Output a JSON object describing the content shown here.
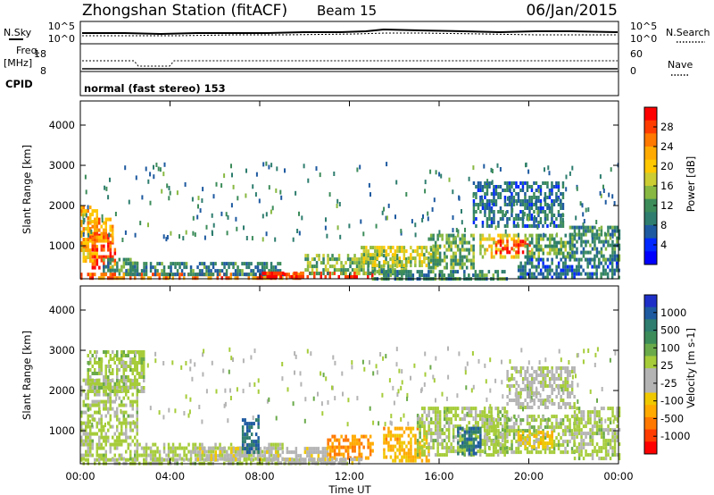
{
  "header": {
    "title": "Zhongshan Station (fitACF)",
    "beam": "Beam 15",
    "date": "06/Jan/2015"
  },
  "status_panel": {
    "left_top_label": "N.Sky",
    "left_top_ticks": [
      "10^5",
      "10^0"
    ],
    "right_top_label": "N.Search",
    "right_top_ticks": [
      "10^5",
      "10^0"
    ],
    "freq_label_1": "Freq.",
    "freq_label_2": "[MHz]",
    "freq_ticks": [
      "18",
      "8"
    ],
    "nave_label": "Nave",
    "nave_ticks": [
      "60",
      "0"
    ],
    "cpid_label": "CPID",
    "cpid_text": "normal (fast stereo) 153"
  },
  "x_axis": {
    "label": "Time UT",
    "tick_labels": [
      "00:00",
      "04:00",
      "08:00",
      "12:00",
      "16:00",
      "20:00",
      "00:00"
    ]
  },
  "power_colorbar": {
    "label": "Power [dB]",
    "tick_labels": [
      "28",
      "24",
      "20",
      "16",
      "12",
      "8",
      "4"
    ],
    "colors": [
      "#ff0000",
      "#ff3c00",
      "#ff7800",
      "#ffaa00",
      "#ffc800",
      "#cccc33",
      "#88b842",
      "#3c8c5a",
      "#2e7d6e",
      "#1e5aa0",
      "#0028ff",
      "#0000ff"
    ]
  },
  "velocity_colorbar": {
    "label": "Velocity [m s-1]",
    "tick_labels": [
      "1000",
      "500",
      "100",
      "25",
      "-25",
      "-100",
      "-500",
      "-1000"
    ],
    "colors": [
      "#1e2fc8",
      "#1e5aa0",
      "#2e7d6e",
      "#3c8c5a",
      "#6aaa4a",
      "#a6cc3a",
      "#b4b4b4",
      "#b4b4b4",
      "#f0c800",
      "#ffaa00",
      "#ff7800",
      "#ff3c00",
      "#ff0000"
    ]
  },
  "chart_data": [
    {
      "type": "heatmap",
      "title": "",
      "xlabel": "Time UT",
      "ylabel": "Slant Range [km]",
      "x_range_hours": [
        0,
        24
      ],
      "ylim": [
        180,
        4600
      ],
      "y_tick_labels": [
        "1000",
        "2000",
        "3000",
        "4000"
      ],
      "colorbar": "Power [dB]",
      "scale": [
        0,
        30
      ],
      "features": [
        {
          "t0": 0.0,
          "t1": 0.7,
          "r0": 600,
          "r1": 2000,
          "level": 20
        },
        {
          "t0": 0.5,
          "t1": 1.5,
          "r0": 500,
          "r1": 1300,
          "level": 26
        },
        {
          "t0": 0.3,
          "t1": 1.4,
          "r0": 1100,
          "r1": 1700,
          "level": 22
        },
        {
          "t0": 1.0,
          "t1": 2.5,
          "r0": 300,
          "r1": 700,
          "level": 10
        },
        {
          "t0": 0.0,
          "t1": 10.0,
          "r0": 200,
          "r1": 330,
          "level": 24
        },
        {
          "t0": 2.0,
          "t1": 9.0,
          "r0": 330,
          "r1": 600,
          "level": 9
        },
        {
          "t0": 8.0,
          "t1": 13.0,
          "r0": 200,
          "r1": 360,
          "level": 28
        },
        {
          "t0": 10.0,
          "t1": 14.5,
          "r0": 350,
          "r1": 800,
          "level": 13
        },
        {
          "t0": 12.5,
          "t1": 16.0,
          "r0": 500,
          "r1": 1000,
          "level": 16
        },
        {
          "t0": 15.5,
          "t1": 17.5,
          "r0": 500,
          "r1": 1300,
          "level": 12
        },
        {
          "t0": 13.0,
          "t1": 19.0,
          "r0": 200,
          "r1": 400,
          "level": 10
        },
        {
          "t0": 17.8,
          "t1": 19.5,
          "r0": 700,
          "r1": 1300,
          "level": 18
        },
        {
          "t0": 18.5,
          "t1": 20.0,
          "r0": 800,
          "r1": 1150,
          "level": 27
        },
        {
          "t0": 19.8,
          "t1": 22.0,
          "r0": 700,
          "r1": 1300,
          "level": 12
        },
        {
          "t0": 19.5,
          "t1": 24.0,
          "r0": 200,
          "r1": 700,
          "level": 8
        },
        {
          "t0": 17.5,
          "t1": 21.5,
          "r0": 1500,
          "r1": 2600,
          "level": 8
        },
        {
          "t0": 21.8,
          "t1": 24.0,
          "r0": 700,
          "r1": 1500,
          "level": 10
        }
      ]
    },
    {
      "type": "heatmap",
      "title": "",
      "xlabel": "Time UT",
      "ylabel": "Slant Range [km]",
      "x_range_hours": [
        0,
        24
      ],
      "ylim": [
        180,
        4600
      ],
      "y_tick_labels": [
        "1000",
        "2000",
        "3000",
        "4000"
      ],
      "colorbar": "Velocity [m s-1]",
      "scale": [
        -1000,
        1000
      ],
      "features": [
        {
          "t0": 0.0,
          "t1": 2.5,
          "r0": 300,
          "r1": 2300,
          "level": 120
        },
        {
          "t0": 0.3,
          "t1": 2.8,
          "r0": 2000,
          "r1": 3000,
          "level": 150
        },
        {
          "t0": 0.0,
          "t1": 12.0,
          "r0": 200,
          "r1": 320,
          "level": 110
        },
        {
          "t0": 2.5,
          "t1": 9.0,
          "r0": 300,
          "r1": 700,
          "level": 90
        },
        {
          "t0": 5.0,
          "t1": 11.0,
          "r0": 300,
          "r1": 600,
          "level": -160
        },
        {
          "t0": 7.2,
          "t1": 7.9,
          "r0": 500,
          "r1": 1400,
          "level": 700
        },
        {
          "t0": 11.0,
          "t1": 13.0,
          "r0": 300,
          "r1": 900,
          "level": -550
        },
        {
          "t0": 13.5,
          "t1": 15.5,
          "r0": 300,
          "r1": 1100,
          "level": -420
        },
        {
          "t0": 15.0,
          "t1": 19.0,
          "r0": 400,
          "r1": 1600,
          "level": 140
        },
        {
          "t0": 16.8,
          "t1": 17.8,
          "r0": 400,
          "r1": 1100,
          "level": 700
        },
        {
          "t0": 18.0,
          "t1": 22.0,
          "r0": 500,
          "r1": 1400,
          "level": 150
        },
        {
          "t0": 19.0,
          "t1": 22.0,
          "r0": 1600,
          "r1": 2600,
          "level": 10
        },
        {
          "t0": 19.5,
          "t1": 21.0,
          "r0": 600,
          "r1": 1000,
          "level": -300
        },
        {
          "t0": 22.0,
          "t1": 24.0,
          "r0": 300,
          "r1": 1600,
          "level": 120
        },
        {
          "t0": 8.5,
          "t1": 12.5,
          "r0": 200,
          "r1": 330,
          "level": -130
        }
      ]
    }
  ]
}
